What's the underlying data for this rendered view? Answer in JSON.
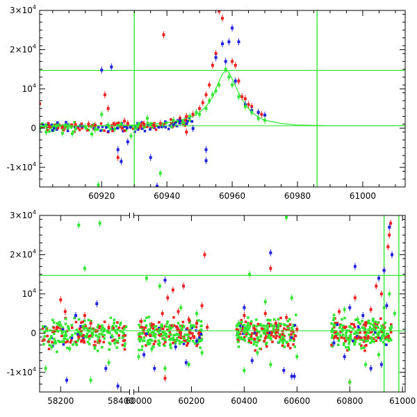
{
  "chart_data": [
    {
      "type": "scatter",
      "panel": "top",
      "title": "",
      "xlabel": "",
      "ylabel": "",
      "xlim": [
        60901,
        61013
      ],
      "ylim": [
        -15000,
        30000
      ],
      "xticks": [
        60920,
        60940,
        60960,
        60980,
        61000
      ],
      "yticks": [
        -10000,
        0,
        10000,
        20000,
        30000
      ],
      "ytick_labels": [
        {
          "value": -10000,
          "mantissa": "-1×10",
          "exp": "4"
        },
        {
          "value": 0,
          "mantissa": "0",
          "exp": ""
        },
        {
          "value": 10000,
          "mantissa": "10",
          "exp": "4"
        },
        {
          "value": 20000,
          "mantissa": "2×10",
          "exp": "4"
        },
        {
          "value": 30000,
          "mantissa": "3×10",
          "exp": "4"
        }
      ],
      "reference_lines": {
        "vertical": [
          60930,
          60986
        ],
        "horizontal": [
          14700,
          600
        ],
        "color": "#33e633"
      },
      "model_curve": {
        "color": "#33e633",
        "x": [
          60901,
          60910,
          60920,
          60930,
          60936,
          60940,
          60944,
          60948,
          60950,
          60952,
          60954,
          60956,
          60957,
          60958,
          60959,
          60960,
          60962,
          60964,
          60966,
          60968,
          60970,
          60975,
          60980,
          60990,
          61000,
          61013
        ],
        "y": [
          400,
          450,
          600,
          800,
          1100,
          1400,
          2000,
          3000,
          4000,
          5500,
          8000,
          12000,
          13800,
          14700,
          14200,
          12500,
          9000,
          6000,
          4000,
          2800,
          2000,
          1200,
          800,
          600,
          600,
          600
        ]
      },
      "series": [
        {
          "name": "red",
          "color": "#ee2222",
          "points": [
            [
              60901,
              6200
            ],
            [
              60904,
              400
            ],
            [
              60908,
              200
            ],
            [
              60912,
              900
            ],
            [
              60916,
              1000
            ],
            [
              60918,
              700
            ],
            [
              60921,
              8500
            ],
            [
              60922,
              5000
            ],
            [
              60924,
              900
            ],
            [
              60926,
              300
            ],
            [
              60928,
              1200
            ],
            [
              60932,
              500
            ],
            [
              60936,
              700
            ],
            [
              60938,
              1200
            ],
            [
              60939,
              23800
            ],
            [
              60942,
              1300
            ],
            [
              60944,
              2500
            ],
            [
              60946,
              3000
            ],
            [
              60948,
              3500
            ],
            [
              60950,
              5000
            ],
            [
              60951,
              6500
            ],
            [
              60952,
              8500
            ],
            [
              60953,
              11000
            ],
            [
              60954,
              16000
            ],
            [
              60955,
              19000
            ],
            [
              60956,
              29800
            ],
            [
              60957,
              28000
            ],
            [
              60960,
              17000
            ],
            [
              60961,
              16000
            ],
            [
              60962,
              12000
            ],
            [
              60963,
              8000
            ],
            [
              60964,
              7500
            ],
            [
              60965,
              6000
            ],
            [
              60966,
              5500
            ],
            [
              60968,
              4000
            ],
            [
              60969,
              3500
            ],
            [
              60925,
              -7500
            ],
            [
              60927,
              1800
            ],
            [
              60933,
              1000
            ],
            [
              60946,
              -1000
            ]
          ]
        },
        {
          "name": "blue",
          "color": "#2222dd",
          "points": [
            [
              60920,
              14800
            ],
            [
              60923,
              15600
            ],
            [
              60925,
              -5500
            ],
            [
              60926,
              -8500
            ],
            [
              60928,
              -3500
            ],
            [
              60935,
              -7500
            ],
            [
              60937,
              -14800
            ],
            [
              60944,
              1800
            ],
            [
              60948,
              -100
            ],
            [
              60952,
              -5500
            ],
            [
              60952,
              -8300
            ],
            [
              60955,
              18000
            ],
            [
              60957,
              21500
            ],
            [
              60958,
              17000
            ],
            [
              60959,
              22000
            ],
            [
              60960,
              25500
            ],
            [
              60962,
              22000
            ],
            [
              60961,
              12000
            ],
            [
              60964,
              6000
            ],
            [
              60966,
              4500
            ],
            [
              60968,
              4000
            ],
            [
              60970,
              3300
            ],
            [
              60942,
              1000
            ],
            [
              60906,
              300
            ]
          ]
        },
        {
          "name": "green",
          "color": "#33e633",
          "points": [
            [
              60901,
              -300
            ],
            [
              60903,
              -1000
            ],
            [
              60906,
              500
            ],
            [
              60908,
              -1300
            ],
            [
              60910,
              600
            ],
            [
              60912,
              -200
            ],
            [
              60915,
              300
            ],
            [
              60917,
              -1500
            ],
            [
              60920,
              3500
            ],
            [
              60922,
              800
            ],
            [
              60924,
              -200
            ],
            [
              60926,
              1000
            ],
            [
              60929,
              -2000
            ],
            [
              60931,
              500
            ],
            [
              60934,
              2500
            ],
            [
              60938,
              -11500
            ],
            [
              60942,
              2000
            ],
            [
              60945,
              1500
            ],
            [
              60947,
              3000
            ],
            [
              60949,
              4000
            ],
            [
              60950,
              3500
            ],
            [
              60952,
              5000
            ],
            [
              60953,
              7000
            ],
            [
              60954,
              8500
            ],
            [
              60955,
              9500
            ],
            [
              60956,
              11000
            ],
            [
              60958,
              15000
            ],
            [
              60959,
              13000
            ],
            [
              60960,
              11000
            ],
            [
              60962,
              8000
            ],
            [
              60964,
              5500
            ],
            [
              60966,
              4000
            ],
            [
              60968,
              2500
            ],
            [
              60970,
              2000
            ],
            [
              60911,
              -1400
            ],
            [
              60918,
              -400
            ],
            [
              60919,
              -14500
            ]
          ]
        }
      ]
    },
    {
      "type": "scatter",
      "panel": "bottom",
      "title": "",
      "xlabel": "",
      "ylabel": "",
      "broken_axis": true,
      "segments": [
        {
          "xlim": [
            58130,
            58430
          ],
          "xticks": [
            58200,
            58400
          ]
        },
        {
          "xlim": [
            59980,
            61010
          ],
          "xticks": [
            60000,
            60200,
            60400,
            60600,
            60800,
            61000
          ]
        }
      ],
      "ylim": [
        -15000,
        30000
      ],
      "yticks": [
        -10000,
        0,
        10000,
        20000,
        30000
      ],
      "ytick_labels": [
        {
          "value": -10000,
          "mantissa": "-1×10",
          "exp": "4"
        },
        {
          "value": 0,
          "mantissa": "0",
          "exp": ""
        },
        {
          "value": 10000,
          "mantissa": "10",
          "exp": "4"
        },
        {
          "value": 20000,
          "mantissa": "2×10",
          "exp": "4"
        },
        {
          "value": 30000,
          "mantissa": "3×10",
          "exp": "4"
        }
      ],
      "reference_lines": {
        "vertical": [
          60930,
          60986
        ],
        "horizontal": [
          14700,
          600
        ],
        "color": "#33e633"
      },
      "series": [
        {
          "name": "red",
          "color": "#ee2222",
          "points": [
            [
              58200,
              8500
            ],
            [
              58215,
              5500
            ],
            [
              58260,
              -1000
            ],
            [
              58280,
              4500
            ],
            [
              58300,
              2500
            ],
            [
              58330,
              -2000
            ],
            [
              58360,
              1500
            ],
            [
              60010,
              3000
            ],
            [
              60050,
              2000
            ],
            [
              60090,
              5000
            ],
            [
              60110,
              9000
            ],
            [
              60130,
              11000
            ],
            [
              60150,
              5500
            ],
            [
              60170,
              12000
            ],
            [
              60190,
              3500
            ],
            [
              60220,
              2500
            ],
            [
              60240,
              7000
            ],
            [
              60260,
              1500
            ],
            [
              60400,
              4500
            ],
            [
              60440,
              1000
            ],
            [
              60480,
              5000
            ],
            [
              60520,
              2500
            ],
            [
              60560,
              4000
            ],
            [
              60600,
              1000
            ],
            [
              60760,
              5500
            ],
            [
              60820,
              9000
            ],
            [
              60860,
              2000
            ],
            [
              60880,
              6000
            ],
            [
              60900,
              12000
            ],
            [
              60930,
              16000
            ],
            [
              60945,
              22000
            ],
            [
              60950,
              25000
            ],
            [
              60955,
              28000
            ],
            [
              60960,
              20000
            ],
            [
              60920,
              10000
            ],
            [
              60500,
              16500
            ],
            [
              60250,
              20000
            ],
            [
              60100,
              -11500
            ],
            [
              60800,
              -12500
            ]
          ]
        },
        {
          "name": "blue",
          "color": "#2222dd",
          "points": [
            [
              58220,
              -12000
            ],
            [
              58250,
              4500
            ],
            [
              58320,
              7500
            ],
            [
              58350,
              -9000
            ],
            [
              58390,
              -13500
            ],
            [
              60020,
              -5500
            ],
            [
              60060,
              -9000
            ],
            [
              60100,
              13500
            ],
            [
              60140,
              -3500
            ],
            [
              60180,
              -7500
            ],
            [
              60220,
              -2000
            ],
            [
              60400,
              6500
            ],
            [
              60430,
              -7000
            ],
            [
              60500,
              20500
            ],
            [
              60550,
              -9500
            ],
            [
              60580,
              -11000
            ],
            [
              60740,
              -2500
            ],
            [
              60780,
              -6000
            ],
            [
              60800,
              6500
            ],
            [
              60820,
              17000
            ],
            [
              60850,
              4500
            ],
            [
              60880,
              -9000
            ],
            [
              60910,
              14000
            ],
            [
              60920,
              -8000
            ],
            [
              60930,
              16000
            ],
            [
              60950,
              27000
            ],
            [
              60960,
              20000
            ],
            [
              60940,
              7000
            ],
            [
              60590,
              -11000
            ]
          ]
        },
        {
          "name": "green",
          "color": "#33e633",
          "points": [
            [
              58150,
              -9000
            ],
            [
              58170,
              -3500
            ],
            [
              58200,
              2000
            ],
            [
              58230,
              -4000
            ],
            [
              58260,
              27500
            ],
            [
              58280,
              16500
            ],
            [
              58300,
              -12000
            ],
            [
              58330,
              28000
            ],
            [
              58360,
              -7500
            ],
            [
              58380,
              -2500
            ],
            [
              60000,
              -6000
            ],
            [
              60030,
              14000
            ],
            [
              60050,
              -4000
            ],
            [
              60080,
              12000
            ],
            [
              60100,
              -9000
            ],
            [
              60120,
              -3000
            ],
            [
              60160,
              6500
            ],
            [
              60190,
              -8000
            ],
            [
              60220,
              5000
            ],
            [
              60240,
              -5000
            ],
            [
              60380,
              2500
            ],
            [
              60400,
              -9500
            ],
            [
              60420,
              15000
            ],
            [
              60450,
              -5000
            ],
            [
              60480,
              8000
            ],
            [
              60500,
              -8000
            ],
            [
              60530,
              2000
            ],
            [
              60560,
              29500
            ],
            [
              60580,
              9000
            ],
            [
              60600,
              -6000
            ],
            [
              60740,
              2000
            ],
            [
              60780,
              6000
            ],
            [
              60800,
              -12500
            ],
            [
              60830,
              3500
            ],
            [
              60860,
              -8000
            ],
            [
              60890,
              2000
            ],
            [
              60910,
              -5500
            ],
            [
              60930,
              6500
            ],
            [
              60950,
              10000
            ],
            [
              60970,
              5000
            ]
          ]
        }
      ]
    }
  ]
}
